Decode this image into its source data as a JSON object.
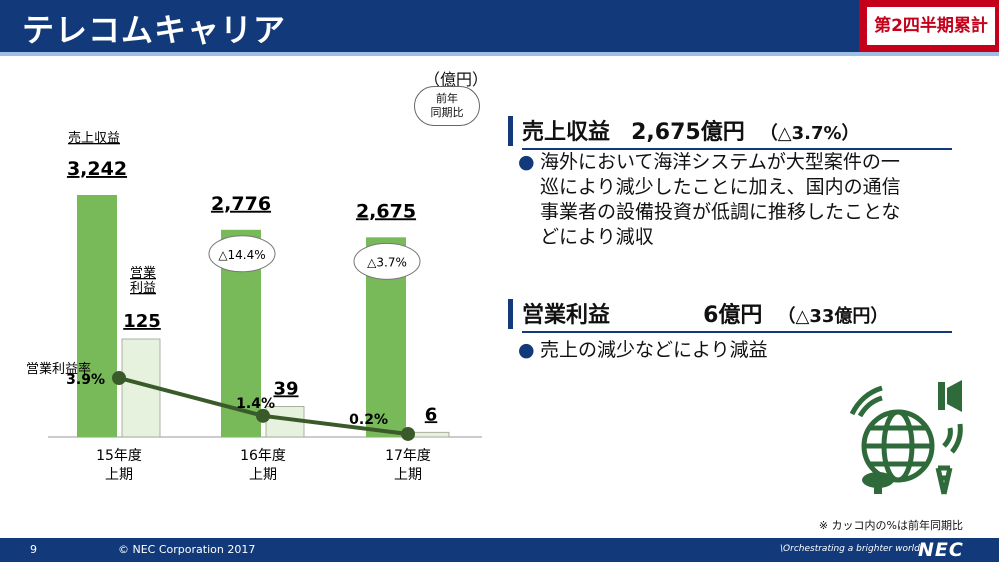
{
  "header": {
    "title": "テレコムキャリア",
    "badge": "第2四半期累計"
  },
  "chart_area": {
    "unit": "（億円）",
    "yoy_legend_line1": "前年",
    "yoy_legend_line2": "同期比"
  },
  "chart_data": {
    "type": "bar",
    "categories": [
      "15年度\n上期",
      "16年度\n上期",
      "17年度\n上期"
    ],
    "category_line1": [
      "15年度",
      "16年度",
      "17年度"
    ],
    "category_line2": [
      "上期",
      "上期",
      "上期"
    ],
    "series": [
      {
        "name": "売上収益",
        "values": [
          3242,
          2776,
          2675
        ],
        "labels": [
          "3,242",
          "2,776",
          "2,675"
        ],
        "color": "#78b95a"
      },
      {
        "name": "営業利益",
        "values": [
          125,
          39,
          6
        ],
        "labels": [
          "125",
          "39",
          "6"
        ],
        "color": "#e6f1de"
      }
    ],
    "line_series": {
      "name": "営業利益率",
      "values": [
        3.9,
        1.4,
        0.2
      ],
      "labels": [
        "3.9%",
        "1.4%",
        "0.2%"
      ],
      "color": "#3a5a2a"
    },
    "yoy_labels": [
      "",
      "△14.4%",
      "△3.7%"
    ],
    "series_label_sales": "売上収益",
    "series_label_op_line1": "営業",
    "series_label_op_line2": "利益",
    "series_label_margin": "営業利益率"
  },
  "points": {
    "sales": {
      "label": "売上収益",
      "value": "2,675億円",
      "yoy": "（△3.7%）",
      "bullet": [
        "海外において海洋システムが大型案件の一",
        "巡により減少したことに加え、国内の通信",
        "事業者の設備投資が低調に推移したことな",
        "どにより減収"
      ]
    },
    "op": {
      "label": "営業利益",
      "value": "6億円",
      "yoy": "（△33億円）",
      "bullet": [
        "売上の減少などにより減益"
      ]
    }
  },
  "footnote": "※ カッコ内の%は前年同期比",
  "footer": {
    "page": "9",
    "copyright": "© NEC Corporation 2017",
    "tagline": "\\Orchestrating a brighter world",
    "logo": "NEC"
  },
  "colors": {
    "navy": "#123a7a",
    "red": "#c4001b",
    "green": "#78b95a",
    "darkgreen": "#3a5a2a"
  }
}
